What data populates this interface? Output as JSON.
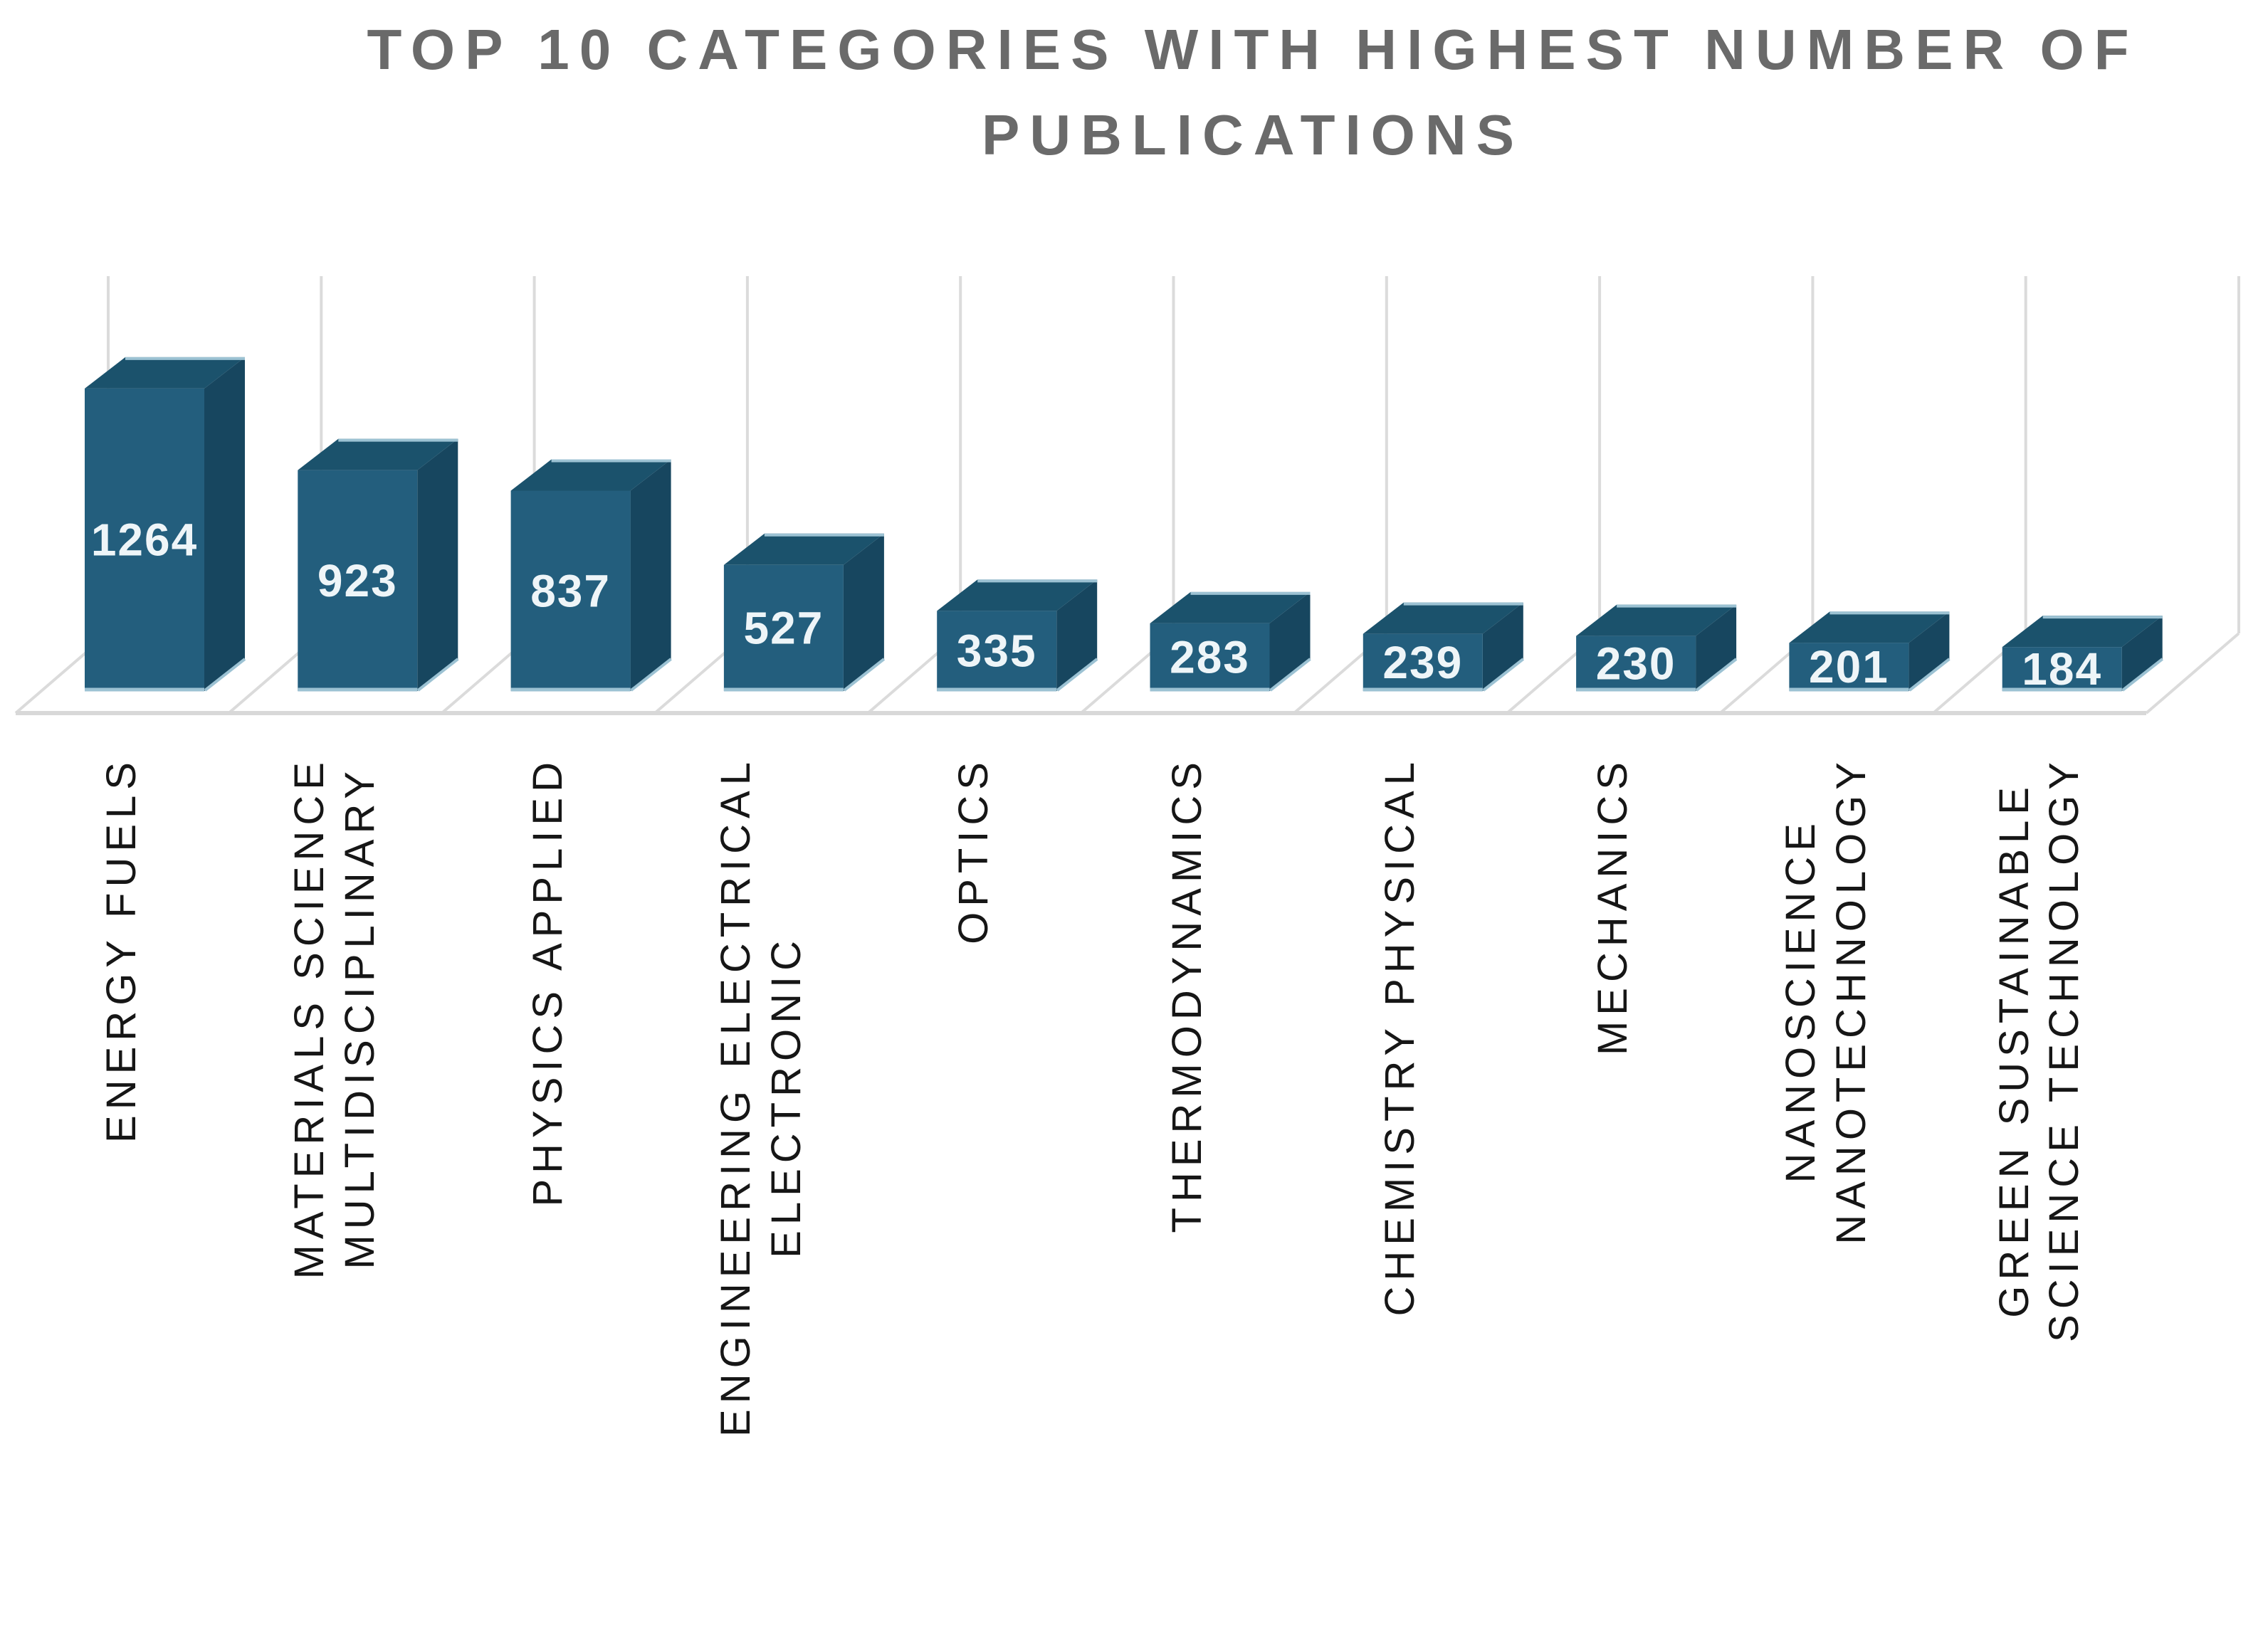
{
  "title": {
    "line1": "TOP 10 CATEGORIES WITH HIGHEST NUMBER OF",
    "line2": "PUBLICATIONS"
  },
  "chart_data": {
    "type": "bar",
    "variant": "3d-column",
    "title": "TOP 10 CATEGORIES WITH HIGHEST NUMBER OF PUBLICATIONS",
    "categories": [
      "ENERGY FUELS",
      "MATERIALS SCIENCE MULTIDISCIPLINARY",
      "PHYSICS APPLIED",
      "ENGINEERING ELECTRICAL ELECTRONIC",
      "OPTICS",
      "THERMODYNAMICS",
      "CHEMISTRY PHYSICAL",
      "MECHANICS",
      "NANOSCIENCE NANOTECHNOLOGY",
      "GREEN SUSTAINABLE SCIENCE TECHNOLOGY"
    ],
    "values": [
      1264,
      923,
      837,
      527,
      335,
      283,
      239,
      230,
      201,
      184
    ],
    "xlabel": "",
    "ylabel": "",
    "y_axis_ticks_visible": false,
    "value_labels": "inside-bar-center",
    "x_label_rotation_degrees": -90,
    "gridlines": "vertical-back-wall",
    "legend": "none"
  },
  "category_label_lines": [
    [
      "ENERGY FUELS"
    ],
    [
      "MATERIALS SCIENCE",
      "MULTIDISCIPLINARY"
    ],
    [
      "PHYSICS APPLIED"
    ],
    [
      "ENGINEERING ELECTRICAL",
      "ELECTRONIC"
    ],
    [
      "OPTICS"
    ],
    [
      "THERMODYNAMICS"
    ],
    [
      "CHEMISTRY PHYSICAL"
    ],
    [
      "MECHANICS"
    ],
    [
      "NANOSCIENCE",
      "NANOTECHNOLOGY"
    ],
    [
      "GREEN SUSTAINABLE",
      "SCIENCE TECHNOLOGY"
    ]
  ],
  "colors": {
    "bar_front": "#235E7D",
    "bar_top": "#1B526C",
    "bar_side": "#17465F",
    "bar_highlight_edge": "#9CC2D3",
    "value_text": "#EEF5F8",
    "grid_line": "#DBDBDB",
    "axis_line": "#D8D8D8",
    "title_text": "#6A6A6A",
    "label_text": "#161616",
    "background": "#FFFFFF"
  }
}
